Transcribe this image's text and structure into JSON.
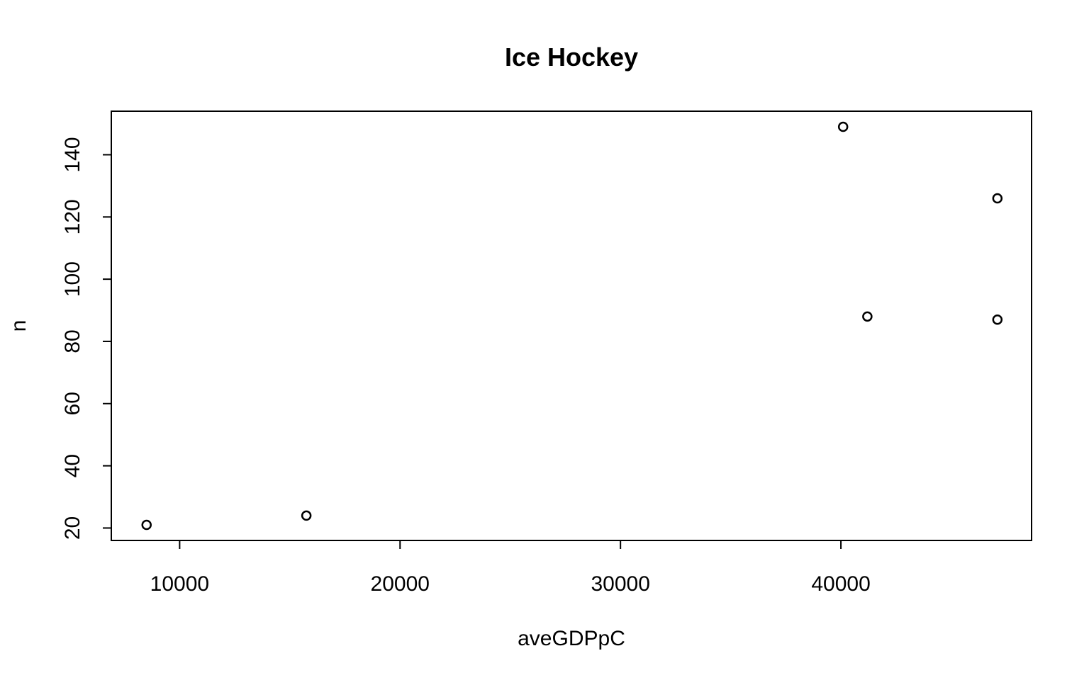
{
  "chart_data": {
    "type": "scatter",
    "title": "Ice Hockey",
    "xlabel": "aveGDPpC",
    "ylabel": "n",
    "x_ticks": [
      10000,
      20000,
      30000,
      40000
    ],
    "y_ticks": [
      20,
      40,
      60,
      80,
      100,
      120,
      140
    ],
    "xlim": [
      6900,
      48650
    ],
    "ylim": [
      16,
      154
    ],
    "grid": false,
    "marker": "open-circle",
    "points": [
      {
        "x": 8500,
        "y": 21
      },
      {
        "x": 15750,
        "y": 24
      },
      {
        "x": 40100,
        "y": 149
      },
      {
        "x": 41200,
        "y": 88
      },
      {
        "x": 47100,
        "y": 126
      },
      {
        "x": 47100,
        "y": 87
      }
    ]
  }
}
